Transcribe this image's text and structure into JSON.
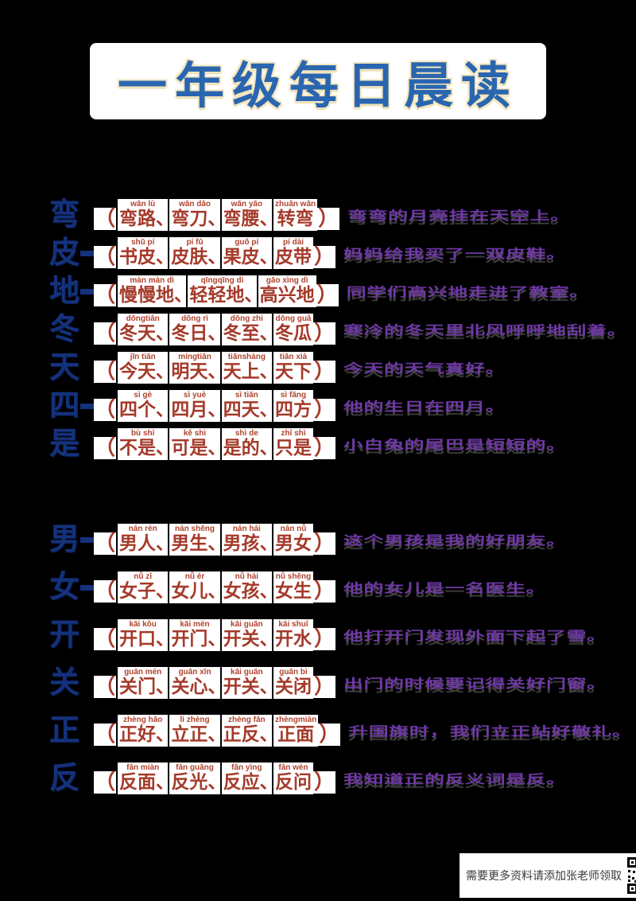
{
  "title": {
    "text": "一年级每日晨读"
  },
  "colors": {
    "background": "#000000",
    "title_blue": "#2a66b0",
    "title_outline": "#f3e6c0",
    "character_navy": "#14317c",
    "word_red": "#a53a2a",
    "sentence_purple": "#7038a8",
    "box_white": "#ffffff"
  },
  "punctuation": {
    "open_paren": "（",
    "close_paren": "）",
    "separator": "、"
  },
  "sections": [
    {
      "rows": [
        {
          "char": "弯",
          "dash": false,
          "words": [
            {
              "py": "wān lù",
              "w": "弯路"
            },
            {
              "py": "wān dāo",
              "w": "弯刀"
            },
            {
              "py": "wān yāo",
              "w": "弯腰"
            },
            {
              "py": "zhuǎn wān",
              "w": "转弯"
            }
          ],
          "sentence": "弯弯的月亮挂在天空上。"
        },
        {
          "char": "皮",
          "dash": true,
          "words": [
            {
              "py": "shū pí",
              "w": "书皮"
            },
            {
              "py": "pí fū",
              "w": "皮肤"
            },
            {
              "py": "guǒ pí",
              "w": "果皮"
            },
            {
              "py": "pí dài",
              "w": "皮带"
            }
          ],
          "sentence": "妈妈给我买了一双皮鞋。"
        },
        {
          "char": "地",
          "dash": true,
          "words": [
            {
              "py": "màn màn dì",
              "w": "慢慢地"
            },
            {
              "py": "qīngqīng dì",
              "w": "轻轻地"
            },
            {
              "py": "gāo xìng dì",
              "w": "高兴地"
            }
          ],
          "sentence": "同学们高兴地走进了教室。"
        },
        {
          "char": "冬",
          "dash": false,
          "words": [
            {
              "py": "dōngtiān",
              "w": "冬天"
            },
            {
              "py": "dōng rì",
              "w": "冬日"
            },
            {
              "py": "dōng zhì",
              "w": "冬至"
            },
            {
              "py": "dōng guā",
              "w": "冬瓜"
            }
          ],
          "sentence": "寒冷的冬天里北风呼呼地刮着。"
        },
        {
          "char": "天",
          "dash": false,
          "words": [
            {
              "py": "jīn tiān",
              "w": "今天"
            },
            {
              "py": "míngtiān",
              "w": "明天"
            },
            {
              "py": "tiānshàng",
              "w": "天上"
            },
            {
              "py": "tiān xià",
              "w": "天下"
            }
          ],
          "sentence": "今天的天气真好。"
        },
        {
          "char": "四",
          "dash": true,
          "words": [
            {
              "py": "sì gè",
              "w": "四个"
            },
            {
              "py": "sì yuè",
              "w": "四月"
            },
            {
              "py": "sì tiān",
              "w": "四天"
            },
            {
              "py": "sì fāng",
              "w": "四方"
            }
          ],
          "sentence": "他的生日在四月。"
        },
        {
          "char": "是",
          "dash": false,
          "words": [
            {
              "py": "bù shì",
              "w": "不是"
            },
            {
              "py": "kě shì",
              "w": "可是"
            },
            {
              "py": "shì de",
              "w": "是的"
            },
            {
              "py": "zhǐ shì",
              "w": "只是"
            }
          ],
          "sentence": "小白兔的尾巴是短短的。"
        }
      ]
    },
    {
      "rows": [
        {
          "char": "男",
          "dash": true,
          "words": [
            {
              "py": "nán rén",
              "w": "男人"
            },
            {
              "py": "nán shēng",
              "w": "男生"
            },
            {
              "py": "nán hái",
              "w": "男孩"
            },
            {
              "py": "nán nǚ",
              "w": "男女"
            }
          ],
          "sentence": "这个男孩是我的好朋友。"
        },
        {
          "char": "女",
          "dash": true,
          "words": [
            {
              "py": "nǚ zǐ",
              "w": "女子"
            },
            {
              "py": "nǚ ér",
              "w": "女儿"
            },
            {
              "py": "nǚ hái",
              "w": "女孩"
            },
            {
              "py": "nǚ shēng",
              "w": "女生"
            }
          ],
          "sentence": "他的女儿是一名医生。"
        },
        {
          "char": "开",
          "dash": false,
          "words": [
            {
              "py": "kāi kǒu",
              "w": "开口"
            },
            {
              "py": "kāi mén",
              "w": "开门"
            },
            {
              "py": "kāi guān",
              "w": "开关"
            },
            {
              "py": "kāi shuǐ",
              "w": "开水"
            }
          ],
          "sentence": "他打开门发现外面下起了雪。"
        },
        {
          "char": "关",
          "dash": false,
          "words": [
            {
              "py": "guān mén",
              "w": "关门"
            },
            {
              "py": "guān xīn",
              "w": "关心"
            },
            {
              "py": "kāi guān",
              "w": "开关"
            },
            {
              "py": "guān bì",
              "w": "关闭"
            }
          ],
          "sentence": "出门的时候要记得关好门窗。"
        },
        {
          "char": "正",
          "dash": false,
          "words": [
            {
              "py": "zhèng hǎo",
              "w": "正好"
            },
            {
              "py": "lì zhèng",
              "w": "立正"
            },
            {
              "py": "zhèng fǎn",
              "w": "正反"
            },
            {
              "py": "zhèngmiàn",
              "w": "正面"
            }
          ],
          "sentence": "升国旗时，我们立正站好敬礼。"
        },
        {
          "char": "反",
          "dash": false,
          "words": [
            {
              "py": "fǎn miàn",
              "w": "反面"
            },
            {
              "py": "fǎn guāng",
              "w": "反光"
            },
            {
              "py": "fǎn yìng",
              "w": "反应"
            },
            {
              "py": "fǎn wèn",
              "w": "反问"
            }
          ],
          "sentence": "我知道正的反义词是反。"
        }
      ]
    }
  ],
  "footer": {
    "text": "需要更多资料请添加张老师领取",
    "qr_label": "qr-code"
  }
}
